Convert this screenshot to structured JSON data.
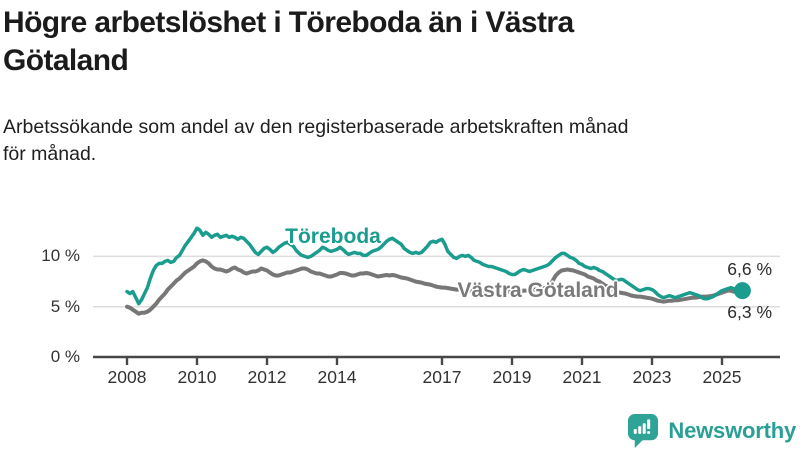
{
  "header": {
    "title": "Högre arbetslöshet i Töreboda än i Västra\nGötaland",
    "subtitle": "Arbetssökande som andel av den registerbaserade arbetskraften månad\nför månad."
  },
  "footer": {
    "brand": "Newsworthy"
  },
  "colors": {
    "accent_teal": "#1a9c8e",
    "series_gray": "#777777",
    "grid": "#dedede",
    "axis": "#474747",
    "tick_text": "#333333",
    "logo_teal": "#2ea396"
  },
  "chart_data": {
    "type": "line",
    "title": "Högre arbetslöshet i Töreboda än i Västra Götaland",
    "subtitle": "Arbetssökande som andel av den registerbaserade arbetskraften månad för månad.",
    "unit": "%",
    "x_start_year": 2008,
    "points_per_year": 12,
    "ylim": [
      0,
      13.5
    ],
    "grid": "horizontal-only",
    "legend": "inline-series-labels",
    "y_ticks": [
      {
        "label": "0 %",
        "value": 0
      },
      {
        "label": "5 %",
        "value": 5
      },
      {
        "label": "10 %",
        "value": 10
      }
    ],
    "x_ticks": [
      {
        "label": "2008",
        "year": 2008
      },
      {
        "label": "2010",
        "year": 2010
      },
      {
        "label": "2012",
        "year": 2012
      },
      {
        "label": "2014",
        "year": 2014
      },
      {
        "label": "2017",
        "year": 2017
      },
      {
        "label": "2019",
        "year": 2019
      },
      {
        "label": "2021",
        "year": 2021
      },
      {
        "label": "2023",
        "year": 2023
      },
      {
        "label": "2025",
        "year": 2025
      }
    ],
    "series": [
      {
        "name": "Töreboda",
        "color": "#1a9c8e",
        "stroke_width": 3.5,
        "values": [
          6.5,
          6.3,
          6.5,
          5.9,
          5.3,
          5.7,
          6.3,
          6.9,
          7.8,
          8.6,
          9.1,
          9.3,
          9.3,
          9.5,
          9.6,
          9.4,
          9.5,
          9.9,
          10.1,
          10.6,
          11.1,
          11.5,
          11.9,
          12.3,
          12.8,
          12.6,
          12.1,
          12.4,
          12.2,
          11.9,
          12.1,
          12.2,
          11.9,
          12.0,
          12.1,
          11.9,
          12.0,
          11.9,
          11.7,
          11.9,
          11.8,
          11.5,
          11.2,
          10.8,
          10.4,
          10.2,
          10.5,
          10.8,
          10.9,
          10.7,
          10.4,
          10.6,
          10.9,
          11.1,
          11.3,
          11.4,
          11.2,
          11.0,
          10.6,
          10.3,
          10.1,
          10.0,
          9.9,
          10.0,
          10.2,
          10.4,
          10.6,
          10.9,
          10.8,
          10.6,
          10.5,
          10.6,
          10.7,
          10.9,
          10.7,
          10.4,
          10.2,
          10.3,
          10.4,
          10.3,
          10.3,
          10.1,
          10.1,
          10.3,
          10.5,
          10.6,
          10.7,
          10.9,
          11.2,
          11.5,
          11.7,
          11.8,
          11.6,
          11.4,
          11.2,
          10.8,
          10.6,
          10.4,
          10.3,
          10.4,
          10.3,
          10.4,
          10.7,
          11.0,
          11.4,
          11.5,
          11.4,
          11.6,
          11.7,
          11.2,
          10.5,
          10.2,
          9.9,
          9.8,
          10.0,
          10.1,
          10.0,
          10.1,
          9.9,
          9.6,
          9.5,
          9.4,
          9.2,
          9.1,
          9.0,
          9.0,
          8.9,
          8.8,
          8.7,
          8.6,
          8.5,
          8.3,
          8.2,
          8.2,
          8.4,
          8.6,
          8.7,
          8.6,
          8.5,
          8.6,
          8.7,
          8.8,
          8.9,
          9.0,
          9.1,
          9.3,
          9.6,
          9.9,
          10.1,
          10.3,
          10.3,
          10.1,
          9.9,
          9.8,
          9.6,
          9.3,
          9.2,
          9.0,
          8.9,
          8.8,
          8.9,
          8.8,
          8.6,
          8.5,
          8.3,
          8.1,
          7.9,
          7.7,
          7.6,
          7.7,
          7.7,
          7.5,
          7.3,
          7.1,
          6.9,
          6.7,
          6.6,
          6.7,
          6.8,
          6.8,
          6.7,
          6.5,
          6.2,
          6.0,
          5.9,
          6.0,
          6.1,
          6.0,
          5.9,
          6.0,
          6.1,
          6.2,
          6.3,
          6.4,
          6.3,
          6.2,
          6.1,
          5.9,
          5.8,
          5.8,
          5.9,
          6.0,
          6.2,
          6.4,
          6.6,
          6.7,
          6.8,
          6.9,
          6.8,
          6.7,
          6.6,
          6.6
        ]
      },
      {
        "name": "Västra Götaland",
        "color": "#777777",
        "stroke_width": 4,
        "values": [
          5.0,
          4.9,
          4.7,
          4.5,
          4.3,
          4.4,
          4.4,
          4.5,
          4.7,
          5.0,
          5.3,
          5.7,
          6.0,
          6.3,
          6.7,
          7.0,
          7.3,
          7.6,
          7.8,
          8.1,
          8.4,
          8.6,
          8.8,
          9.0,
          9.3,
          9.5,
          9.6,
          9.5,
          9.3,
          9.0,
          8.8,
          8.7,
          8.7,
          8.6,
          8.5,
          8.6,
          8.8,
          8.9,
          8.7,
          8.6,
          8.4,
          8.3,
          8.4,
          8.5,
          8.5,
          8.6,
          8.8,
          8.7,
          8.6,
          8.4,
          8.2,
          8.1,
          8.1,
          8.2,
          8.3,
          8.4,
          8.4,
          8.5,
          8.6,
          8.7,
          8.8,
          8.8,
          8.7,
          8.5,
          8.4,
          8.3,
          8.3,
          8.2,
          8.1,
          8.0,
          8.0,
          8.1,
          8.2,
          8.35,
          8.35,
          8.3,
          8.2,
          8.1,
          8.1,
          8.2,
          8.3,
          8.3,
          8.35,
          8.3,
          8.2,
          8.1,
          8.0,
          8.05,
          8.1,
          8.15,
          8.1,
          8.15,
          8.1,
          8.0,
          7.9,
          7.85,
          7.8,
          7.7,
          7.6,
          7.5,
          7.45,
          7.4,
          7.3,
          7.25,
          7.2,
          7.1,
          7.0,
          6.95,
          6.9,
          6.9,
          6.85,
          6.8,
          6.75,
          6.7,
          6.7,
          6.65,
          6.6,
          6.6,
          6.55,
          6.5,
          6.5,
          6.45,
          6.4,
          6.4,
          6.35,
          6.35,
          6.3,
          6.3,
          6.35,
          6.4,
          6.4,
          6.45,
          6.5,
          6.5,
          6.5,
          6.55,
          6.6,
          6.6,
          6.65,
          6.7,
          6.7,
          6.75,
          6.8,
          6.85,
          6.9,
          7.1,
          7.6,
          8.1,
          8.4,
          8.6,
          8.65,
          8.7,
          8.65,
          8.6,
          8.5,
          8.4,
          8.3,
          8.2,
          8.0,
          7.9,
          7.8,
          7.6,
          7.5,
          7.3,
          7.1,
          7.0,
          6.8,
          6.6,
          6.5,
          6.4,
          6.35,
          6.3,
          6.2,
          6.1,
          6.05,
          6.0,
          6.0,
          5.95,
          5.9,
          5.85,
          5.8,
          5.7,
          5.6,
          5.55,
          5.5,
          5.55,
          5.6,
          5.6,
          5.65,
          5.65,
          5.7,
          5.75,
          5.8,
          5.85,
          5.9,
          5.9,
          5.95,
          6.0,
          6.0,
          6.0,
          6.05,
          6.1,
          6.2,
          6.3,
          6.4,
          6.5,
          6.6,
          6.6,
          6.5,
          6.45,
          6.35,
          6.3
        ]
      }
    ],
    "end_labels": [
      {
        "text": "6,6 %",
        "series": "Töreboda",
        "value": 6.6
      },
      {
        "text": "6,3 %",
        "series": "Västra Götaland",
        "value": 6.3
      }
    ],
    "end_dot": {
      "series": "Töreboda",
      "color": "#1a9c8e",
      "radius": 8.5
    }
  }
}
